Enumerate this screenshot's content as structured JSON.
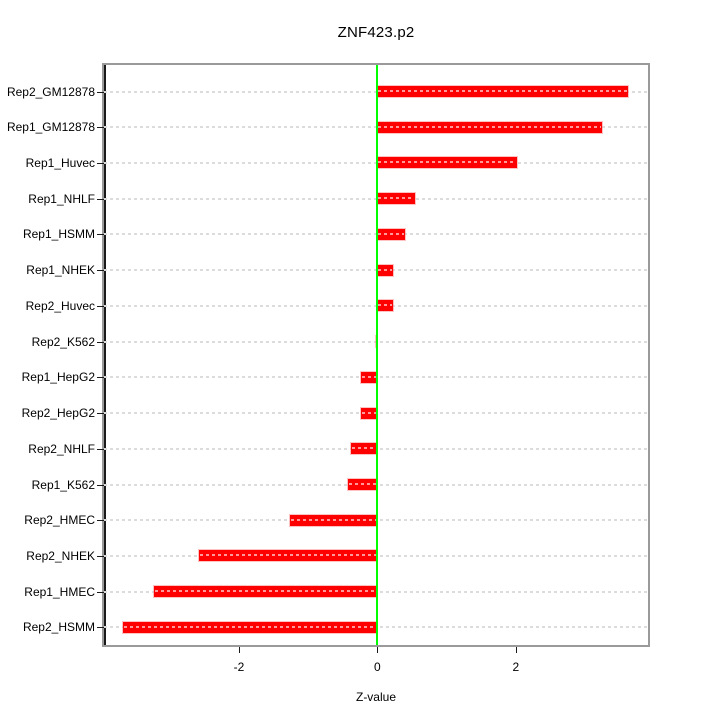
{
  "chart_data": {
    "type": "bar",
    "orientation": "horizontal",
    "title": "ZNF423.p2",
    "xlabel": "Z-value",
    "ylabel": "",
    "categories": [
      "Rep2_GM12878",
      "Rep1_GM12878",
      "Rep1_Huvec",
      "Rep1_NHLF",
      "Rep1_HSMM",
      "Rep1_NHEK",
      "Rep2_Huvec",
      "Rep2_K562",
      "Rep1_HepG2",
      "Rep2_HepG2",
      "Rep2_NHLF",
      "Rep1_K562",
      "Rep2_HMEC",
      "Rep2_NHEK",
      "Rep1_HMEC",
      "Rep2_HSMM"
    ],
    "values": [
      3.62,
      3.24,
      2.02,
      0.55,
      0.4,
      0.22,
      0.22,
      -0.02,
      -0.23,
      -0.24,
      -0.38,
      -0.42,
      -1.26,
      -2.58,
      -3.23,
      -3.67
    ],
    "xlim": [
      -3.95,
      3.91
    ],
    "xticks": [
      -2,
      0,
      2
    ],
    "xtick_labels": [
      "-2",
      "0",
      "2"
    ],
    "grid": true,
    "legend": false,
    "zero_reference_line": 0
  },
  "colors": {
    "bar": "#ff0000",
    "bar_dash_overlay": "#ff9999",
    "gridline": "#dcdcdc",
    "zero_line": "#00ff00",
    "frame": "#9a9a9a",
    "text": "#000000"
  }
}
